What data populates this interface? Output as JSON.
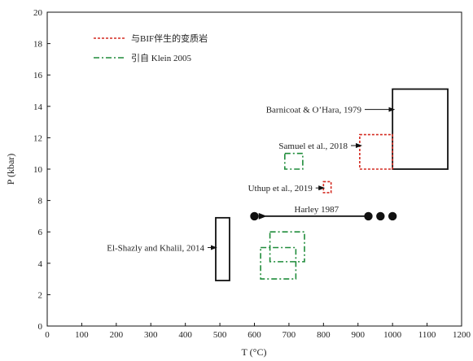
{
  "chart_data": {
    "type": "scatter",
    "xlabel": "T (°C)",
    "ylabel": "P (kbar)",
    "xlim": [
      0,
      1200
    ],
    "ylim": [
      0,
      20
    ],
    "xticks": [
      0,
      100,
      200,
      300,
      400,
      500,
      600,
      700,
      800,
      900,
      1000,
      1100,
      1200
    ],
    "yticks": [
      0,
      2,
      4,
      6,
      8,
      10,
      12,
      14,
      16,
      18,
      20
    ],
    "grid": false,
    "legend_placement": "top-left",
    "legend": [
      {
        "label": "与BIF伴生的变质岩",
        "style": "dotted",
        "color": "#d42a20"
      },
      {
        "label": "引自  Klein  2005",
        "style": "dashdot",
        "color": "#1f8c3a"
      }
    ],
    "boxes": [
      {
        "name": "barnicoat",
        "x": [
          1000,
          1160
        ],
        "y": [
          10,
          15.1
        ],
        "style": "solid",
        "color": "#111111"
      },
      {
        "name": "el-shazly",
        "x": [
          488,
          528
        ],
        "y": [
          2.9,
          6.9
        ],
        "style": "solid",
        "color": "#111111"
      },
      {
        "name": "samuel",
        "x": [
          905,
          1000
        ],
        "y": [
          10,
          12.2
        ],
        "style": "dotted",
        "color": "#d42a20"
      },
      {
        "name": "uthup",
        "x": [
          800,
          822
        ],
        "y": [
          8.5,
          9.2
        ],
        "style": "dotted",
        "color": "#d42a20"
      },
      {
        "name": "klein-1",
        "x": [
          688,
          740
        ],
        "y": [
          10,
          11
        ],
        "style": "dashdot",
        "color": "#1f8c3a"
      },
      {
        "name": "klein-2",
        "x": [
          645,
          745
        ],
        "y": [
          4.1,
          6
        ],
        "style": "dashdot",
        "color": "#1f8c3a"
      },
      {
        "name": "klein-3",
        "x": [
          618,
          720
        ],
        "y": [
          3,
          5
        ],
        "style": "dashdot",
        "color": "#1f8c3a"
      }
    ],
    "points": [
      {
        "x": 600,
        "y": 7.0
      },
      {
        "x": 930,
        "y": 7.0
      },
      {
        "x": 965,
        "y": 7.0
      },
      {
        "x": 1000,
        "y": 7.0
      }
    ],
    "harley_arrow": {
      "from": [
        930,
        7.0
      ],
      "to": [
        610,
        7.0
      ]
    },
    "annotations": [
      {
        "name": "barnicoat",
        "text": "Barnicoat & O’Hara, 1979",
        "text_x": 910,
        "text_y": 13.8,
        "arrow_to": [
          1005,
          13.8
        ],
        "anchor": "end"
      },
      {
        "name": "samuel",
        "text": "Samuel et al., 2018",
        "text_x": 870,
        "text_y": 11.5,
        "arrow_to": [
          910,
          11.5
        ],
        "anchor": "end"
      },
      {
        "name": "uthup",
        "text": "Uthup et al., 2019",
        "text_x": 768,
        "text_y": 8.8,
        "arrow_to": [
          802,
          8.8
        ],
        "anchor": "end"
      },
      {
        "name": "harley",
        "text": "Harley 1987",
        "text_x": 780,
        "text_y": 7.45,
        "arrow_to": null,
        "anchor": "middle"
      },
      {
        "name": "el-shazly",
        "text": "El-Shazly and Khalil, 2014",
        "text_x": 455,
        "text_y": 5.0,
        "arrow_to": [
          490,
          5.0
        ],
        "anchor": "end"
      }
    ]
  }
}
